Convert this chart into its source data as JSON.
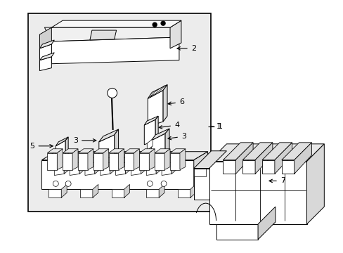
{
  "bg": "#ffffff",
  "lc": "#000000",
  "gray_bg": "#d8d8d8",
  "fig_w": 4.89,
  "fig_h": 3.6,
  "dpi": 100
}
